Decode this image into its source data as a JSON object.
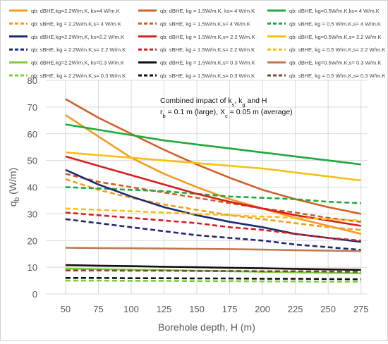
{
  "chart_data": {
    "type": "line",
    "xlabel": "Borehole depth, H (m)",
    "ylabel": "q_b (W/m)",
    "xlim": [
      35,
      280
    ],
    "ylim": [
      0,
      80
    ],
    "xticks": [
      50,
      75,
      100,
      125,
      150,
      175,
      200,
      225,
      250,
      275
    ],
    "yticks": [
      0,
      10,
      20,
      30,
      40,
      50,
      60,
      70,
      80
    ],
    "grid": true,
    "legend_position": "top",
    "annotation": {
      "line1": "Combined impact of k",
      "line1_sub1": "s",
      "line1_mid": ", k",
      "line1_sub2": "g",
      "line1_end": " and H",
      "line2_pre": "r",
      "line2_sub1": "b",
      "line2_mid": " = 0.1 m (large), X",
      "line2_sub2": "c",
      "line2_end": " = 0.05 m (average)"
    },
    "series": [
      {
        "name": "qb: dBHE,kg=2.2W/m.K, ks=4 W/m.K",
        "color": "#f39c1f",
        "dash": false,
        "x": [
          50,
          75,
          100,
          125,
          150,
          175,
          200,
          225,
          250,
          275
        ],
        "values": [
          67,
          59,
          51,
          45,
          40,
          35.5,
          32,
          28.5,
          25.5,
          22.5
        ]
      },
      {
        "name": "qb: dBHE, kg = 1.5W/m.K, ks= 4 W/m.K",
        "color": "#d35f27",
        "dash": false,
        "x": [
          50,
          75,
          100,
          125,
          150,
          175,
          200,
          225,
          250,
          275
        ],
        "values": [
          73,
          66,
          60,
          54,
          48.5,
          43.5,
          39,
          35.5,
          32.5,
          30
        ]
      },
      {
        "name": "qb: dBHE, kg=0.5W/m.K,ks= 4 W/m.K",
        "color": "#1daa3a",
        "dash": false,
        "x": [
          50,
          75,
          100,
          125,
          150,
          175,
          200,
          225,
          250,
          275
        ],
        "values": [
          63.5,
          61.5,
          59.5,
          57.5,
          56,
          54.5,
          53,
          51.5,
          50,
          48.5
        ]
      },
      {
        "name": "qb: sBHE, kg = 2.2W/m.K,s= 4 W/m.K",
        "color": "#f39c1f",
        "dash": true,
        "x": [
          50,
          75,
          100,
          125,
          150,
          175,
          200,
          225,
          250,
          275
        ],
        "values": [
          43,
          39,
          36,
          33.5,
          31.5,
          29.5,
          28,
          26.5,
          25,
          24
        ]
      },
      {
        "name": "qb: sBHE, kg = 1.5W/m.K,s= 4 W/m.K",
        "color": "#d35f27",
        "dash": true,
        "x": [
          50,
          75,
          100,
          125,
          150,
          175,
          200,
          225,
          250,
          275
        ],
        "values": [
          45,
          42,
          40,
          38,
          36,
          34,
          32,
          30.5,
          28.5,
          27
        ]
      },
      {
        "name": "qb: sBHE, kg = 0.5 W/m.K,s= 4 W/m.K",
        "color": "#1daa3a",
        "dash": true,
        "x": [
          50,
          75,
          100,
          125,
          150,
          175,
          200,
          225,
          250,
          275
        ],
        "values": [
          40,
          39.5,
          39,
          38.5,
          37.5,
          36.5,
          36,
          35.5,
          34.5,
          34
        ]
      },
      {
        "name": "qb: dBHE,kg=2.2W/m.K, ks=2.2 W/m.K",
        "color": "#1c2a73",
        "dash": false,
        "x": [
          50,
          75,
          100,
          125,
          150,
          175,
          200,
          225,
          250,
          275
        ],
        "values": [
          46.5,
          41,
          36.5,
          32.5,
          29.5,
          27,
          25,
          22.5,
          21,
          19.5
        ]
      },
      {
        "name": "qb: dBHE, kg = 1.5W/m.K,s= 2.2 W/m.K",
        "color": "#d81e1e",
        "dash": false,
        "x": [
          50,
          75,
          100,
          125,
          150,
          175,
          200,
          225,
          250,
          275
        ],
        "values": [
          51.5,
          48,
          44.5,
          41,
          37.5,
          34.5,
          32,
          29.5,
          27.5,
          25.5
        ]
      },
      {
        "name": "qb: dBHE, kg=0.5W/m.K,s= 2.2 W/m.K",
        "color": "#f9c00f",
        "dash": false,
        "x": [
          50,
          75,
          100,
          125,
          150,
          175,
          200,
          225,
          250,
          275
        ],
        "values": [
          53,
          52,
          51,
          50,
          49,
          48,
          47,
          45.5,
          44,
          42.5
        ]
      },
      {
        "name": "qb: sBHE, kg = 2.2W/m.K,s= 2.2 W/m.K",
        "color": "#1c2a73",
        "dash": true,
        "x": [
          50,
          75,
          100,
          125,
          150,
          175,
          200,
          225,
          250,
          275
        ],
        "values": [
          28,
          26.5,
          25,
          23.5,
          22,
          21,
          20,
          18.5,
          17.5,
          16.5
        ]
      },
      {
        "name": "qb: sBHE, kg = 1.5W/m.K,s= 2.2 W/m.K",
        "color": "#d81e1e",
        "dash": true,
        "x": [
          50,
          75,
          100,
          125,
          150,
          175,
          200,
          225,
          250,
          275
        ],
        "values": [
          30.5,
          29.5,
          28.5,
          27.5,
          26.5,
          25,
          24,
          22.5,
          21,
          20
        ]
      },
      {
        "name": "qb: sBHE, kg = 0.5 W/m.K,s= 2.2 W/m.K",
        "color": "#f9c00f",
        "dash": true,
        "x": [
          50,
          75,
          100,
          125,
          150,
          175,
          200,
          225,
          250,
          275
        ],
        "values": [
          32,
          31.5,
          31,
          30.5,
          30,
          29.5,
          29,
          28.5,
          28,
          27.5
        ]
      },
      {
        "name": "qb: dBHE,kg=2.2W/m.K, ks=0.3 W/m.K",
        "color": "#7ccf3f",
        "dash": false,
        "x": [
          50,
          75,
          100,
          125,
          150,
          175,
          200,
          225,
          250,
          275
        ],
        "values": [
          9.5,
          9.3,
          9.1,
          8.9,
          8.7,
          8.5,
          8.3,
          8.1,
          7.9,
          7.7
        ]
      },
      {
        "name": "qb: dBHE, kg = 1.5W/m.K,s= 0.3 W/m.K",
        "color": "#111111",
        "dash": false,
        "x": [
          50,
          75,
          100,
          125,
          150,
          175,
          200,
          225,
          250,
          275
        ],
        "values": [
          10.8,
          10.6,
          10.4,
          10.2,
          10,
          9.8,
          9.6,
          9.4,
          9.2,
          9
        ]
      },
      {
        "name": "qb: dBHE, kg=0.5W/m.K,s= 0.3 W/m.K",
        "color": "#c07a52",
        "dash": false,
        "x": [
          50,
          75,
          100,
          125,
          150,
          175,
          200,
          225,
          250,
          275
        ],
        "values": [
          17.3,
          17.2,
          17.1,
          17,
          16.9,
          16.8,
          16.6,
          16.4,
          16.2,
          16
        ]
      },
      {
        "name": "qb: sBHE, kg = 2.2W/m.K,s= 0.3 W/m.K",
        "color": "#7ccf3f",
        "dash": true,
        "x": [
          50,
          75,
          100,
          125,
          150,
          175,
          200,
          225,
          250,
          275
        ],
        "values": [
          5,
          5,
          4.9,
          4.9,
          4.8,
          4.8,
          4.7,
          4.7,
          4.6,
          4.6
        ]
      },
      {
        "name": "qb: sBHE, kg = 1.5W/m.K,s= 0.3 W/m.K",
        "color": "#111111",
        "dash": true,
        "x": [
          50,
          75,
          100,
          125,
          150,
          175,
          200,
          225,
          250,
          275
        ],
        "values": [
          6,
          6,
          5.9,
          5.9,
          5.8,
          5.8,
          5.7,
          5.7,
          5.6,
          5.5
        ]
      },
      {
        "name": "qb: sBHE, kg = 0.5 W/m.K,s= 0.3 W/m.K",
        "color": "#7a4a2e",
        "dash": true,
        "x": [
          50,
          75,
          100,
          125,
          150,
          175,
          200,
          225,
          250,
          275
        ],
        "values": [
          8.8,
          8.8,
          8.7,
          8.7,
          8.6,
          8.6,
          8.5,
          8.5,
          8.4,
          8.3
        ]
      }
    ]
  }
}
